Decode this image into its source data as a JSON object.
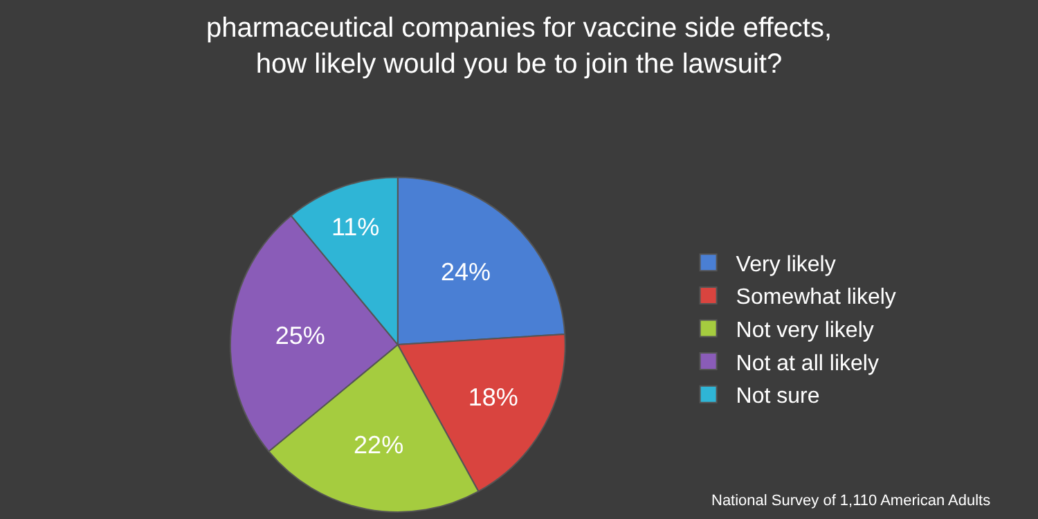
{
  "chart_data": {
    "type": "pie",
    "title": "pharmaceutical companies for vaccine side effects,\nhow likely would you be to join the lawsuit?",
    "categories": [
      "Very likely",
      "Somewhat likely",
      "Not very likely",
      "Not at all likely",
      "Not sure"
    ],
    "values": [
      24,
      18,
      22,
      25,
      11
    ],
    "colors": [
      "#4a7fd4",
      "#d9443f",
      "#a5cc3f",
      "#8a5cb8",
      "#2fb5d6"
    ],
    "value_labels": [
      "24%",
      "18%",
      "22%",
      "25%",
      "11%"
    ],
    "legend": "right",
    "annotations": [
      "National Survey of 1,110 American Adults"
    ]
  }
}
